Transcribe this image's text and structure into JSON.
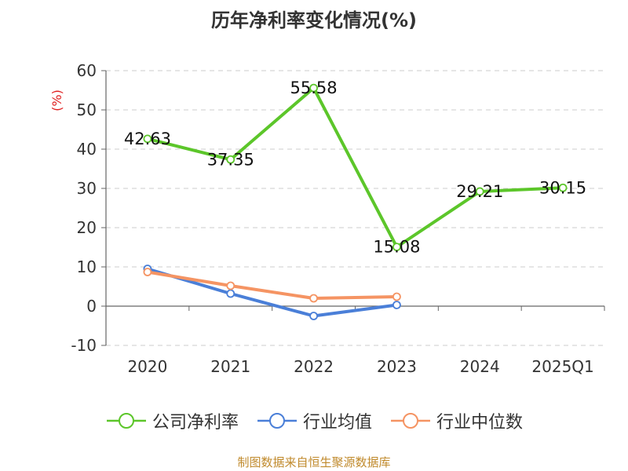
{
  "title": "历年净利率变化情况(%)",
  "source_note": "制图数据来自恒生聚源数据库",
  "colors": {
    "company": "#5cc62a",
    "industry_avg": "#4a7fd8",
    "industry_median": "#f59463",
    "grid": "#cccccc",
    "axis": "#666666",
    "ylabel": "#e02020"
  },
  "chart_data": {
    "type": "line",
    "title": "历年净利率变化情况(%)",
    "xlabel": "",
    "ylabel": "(%)",
    "categories": [
      "2020",
      "2021",
      "2022",
      "2023",
      "2024",
      "2025Q1"
    ],
    "ylim": [
      -10,
      60
    ],
    "yticks": [
      -10,
      0,
      10,
      20,
      30,
      40,
      50,
      60
    ],
    "grid": true,
    "legend_position": "bottom",
    "series": [
      {
        "name": "公司净利率",
        "color_key": "company",
        "values": [
          42.63,
          37.35,
          55.58,
          15.08,
          29.21,
          30.15
        ],
        "show_labels": true
      },
      {
        "name": "行业均值",
        "color_key": "industry_avg",
        "values": [
          9.5,
          3.2,
          -2.5,
          0.3,
          null,
          null
        ],
        "show_labels": false
      },
      {
        "name": "行业中位数",
        "color_key": "industry_median",
        "values": [
          8.7,
          5.2,
          2.0,
          2.4,
          null,
          null
        ],
        "show_labels": false
      }
    ]
  }
}
